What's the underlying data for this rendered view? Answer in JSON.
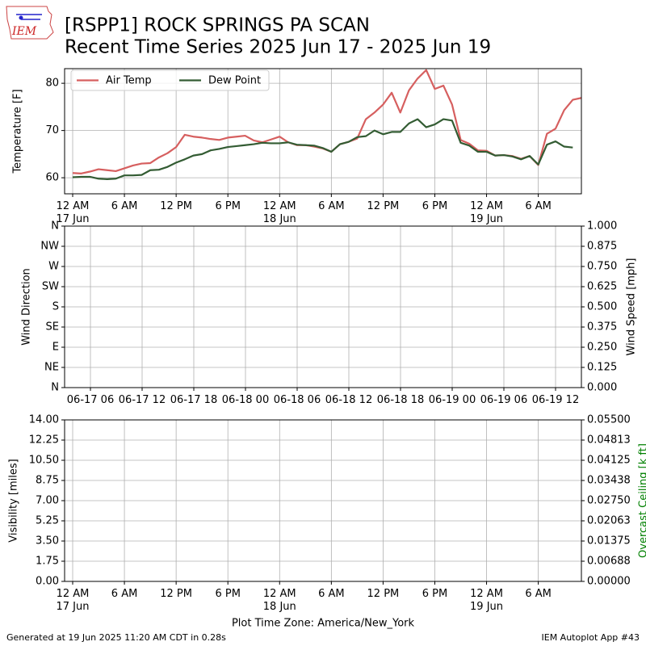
{
  "header": {
    "logo": "IEM",
    "title": [
      "[RSPP1] ROCK SPRINGS PA SCAN",
      "Recent Time Series 2025 Jun 17 - 2025 Jun 19"
    ]
  },
  "footer": {
    "left": "Generated at 19 Jun 2025 11:20 AM CDT in 0.28s",
    "right": "IEM Autoplot App #43"
  },
  "chart_data": [
    {
      "type": "line",
      "ylabel": "Temperature [F]",
      "grid": true,
      "legend": "upper left",
      "xlim": [
        "2025-06-17 00:00",
        "2025-06-19 11:00"
      ],
      "xticks": [
        {
          "value": "2025-06-17 00:00",
          "label": "12 AM\n17 Jun"
        },
        {
          "value": "2025-06-17 06:00",
          "label": "6 AM"
        },
        {
          "value": "2025-06-17 12:00",
          "label": "12 PM"
        },
        {
          "value": "2025-06-17 18:00",
          "label": "6 PM"
        },
        {
          "value": "2025-06-18 00:00",
          "label": "12 AM\n18 Jun"
        },
        {
          "value": "2025-06-18 06:00",
          "label": "6 AM"
        },
        {
          "value": "2025-06-18 12:00",
          "label": "12 PM"
        },
        {
          "value": "2025-06-18 18:00",
          "label": "6 PM"
        },
        {
          "value": "2025-06-19 00:00",
          "label": "12 AM\n19 Jun"
        },
        {
          "value": "2025-06-19 06:00",
          "label": "6 AM"
        }
      ],
      "ylim": [
        56.6,
        83.1
      ],
      "yticks": [
        60,
        70,
        80
      ],
      "x": [
        "2025-06-17 00:00",
        "2025-06-17 01:00",
        "2025-06-17 02:00",
        "2025-06-17 03:00",
        "2025-06-17 04:00",
        "2025-06-17 05:00",
        "2025-06-17 06:00",
        "2025-06-17 07:00",
        "2025-06-17 08:00",
        "2025-06-17 09:00",
        "2025-06-17 10:00",
        "2025-06-17 11:00",
        "2025-06-17 12:00",
        "2025-06-17 13:00",
        "2025-06-17 14:00",
        "2025-06-17 15:00",
        "2025-06-17 16:00",
        "2025-06-17 17:00",
        "2025-06-17 18:00",
        "2025-06-17 19:00",
        "2025-06-17 20:00",
        "2025-06-17 21:00",
        "2025-06-17 22:00",
        "2025-06-17 23:00",
        "2025-06-18 00:00",
        "2025-06-18 01:00",
        "2025-06-18 02:00",
        "2025-06-18 03:00",
        "2025-06-18 04:00",
        "2025-06-18 05:00",
        "2025-06-18 06:00",
        "2025-06-18 07:00",
        "2025-06-18 08:00",
        "2025-06-18 09:00",
        "2025-06-18 10:00",
        "2025-06-18 11:00",
        "2025-06-18 12:00",
        "2025-06-18 13:00",
        "2025-06-18 14:00",
        "2025-06-18 15:00",
        "2025-06-18 16:00",
        "2025-06-18 17:00",
        "2025-06-18 18:00",
        "2025-06-18 19:00",
        "2025-06-18 20:00",
        "2025-06-18 21:00",
        "2025-06-18 22:00",
        "2025-06-18 23:00",
        "2025-06-19 00:00",
        "2025-06-19 01:00",
        "2025-06-19 02:00",
        "2025-06-19 03:00",
        "2025-06-19 04:00",
        "2025-06-19 05:00",
        "2025-06-19 06:00",
        "2025-06-19 07:00",
        "2025-06-19 08:00",
        "2025-06-19 09:00",
        "2025-06-19 10:00",
        "2025-06-19 11:00"
      ],
      "series": [
        {
          "name": "Air Temp",
          "color": "#d65f5f",
          "values": [
            61.0,
            60.9,
            61.3,
            61.8,
            61.6,
            61.4,
            62.0,
            62.6,
            63.0,
            63.1,
            64.3,
            65.2,
            66.5,
            69.1,
            68.7,
            68.5,
            68.2,
            68.0,
            68.5,
            68.7,
            68.9,
            67.9,
            67.5,
            68.1,
            68.7,
            67.5,
            66.9,
            66.9,
            66.6,
            66.2,
            65.5,
            67.1,
            67.6,
            68.3,
            72.4,
            73.8,
            75.5,
            78.0,
            73.8,
            78.5,
            81.0,
            82.8,
            78.8,
            79.5,
            75.5,
            68.0,
            67.2,
            65.8,
            65.7,
            64.7,
            64.8,
            64.6,
            64.0,
            64.6,
            62.7,
            69.3,
            70.4,
            74.3,
            76.5,
            76.9
          ]
        },
        {
          "name": "Dew Point",
          "color": "#335c33",
          "values": [
            60.1,
            60.2,
            60.2,
            59.8,
            59.7,
            59.8,
            60.5,
            60.5,
            60.6,
            61.6,
            61.7,
            62.3,
            63.2,
            63.9,
            64.7,
            65.0,
            65.8,
            66.1,
            66.5,
            66.7,
            66.9,
            67.1,
            67.4,
            67.3,
            67.3,
            67.5,
            67.0,
            66.9,
            66.8,
            66.3,
            65.5,
            67.1,
            67.6,
            68.6,
            68.8,
            70.0,
            69.2,
            69.7,
            69.7,
            71.5,
            72.4,
            70.7,
            71.3,
            72.4,
            72.1,
            67.4,
            66.8,
            65.5,
            65.5,
            64.7,
            64.8,
            64.5,
            63.9,
            64.6,
            62.8,
            67.0,
            67.7,
            66.6,
            66.4,
            null
          ]
        }
      ]
    },
    {
      "type": "line",
      "ylabel": "Wind Direction",
      "y2label": "Wind Speed [mph]",
      "grid": true,
      "xlim": [
        "06-17 03",
        "06-19 15"
      ],
      "xticks": [
        "06-17 06",
        "06-17 12",
        "06-17 18",
        "06-18 00",
        "06-18 06",
        "06-18 12",
        "06-18 18",
        "06-19 00",
        "06-19 06",
        "06-19 12"
      ],
      "ylim": [
        0,
        360
      ],
      "yticks": [
        {
          "value": 0,
          "label": "N"
        },
        {
          "value": 45,
          "label": "NE"
        },
        {
          "value": 90,
          "label": "E"
        },
        {
          "value": 135,
          "label": "SE"
        },
        {
          "value": 180,
          "label": "S"
        },
        {
          "value": 225,
          "label": "SW"
        },
        {
          "value": 270,
          "label": "W"
        },
        {
          "value": 315,
          "label": "NW"
        },
        {
          "value": 360,
          "label": "N"
        }
      ],
      "y2lim": [
        0,
        1
      ],
      "y2ticks": [
        {
          "value": 0,
          "label": "0.000"
        },
        {
          "value": 0.125,
          "label": "0.125"
        },
        {
          "value": 0.25,
          "label": "0.250"
        },
        {
          "value": 0.375,
          "label": "0.375"
        },
        {
          "value": 0.5,
          "label": "0.500"
        },
        {
          "value": 0.625,
          "label": "0.625"
        },
        {
          "value": 0.75,
          "label": "0.750"
        },
        {
          "value": 0.875,
          "label": "0.875"
        },
        {
          "value": 1,
          "label": "1.000"
        }
      ]
    },
    {
      "type": "line",
      "ylabel": "Visibility [miles]",
      "y2label": "Overcast Ceiling [k ft]",
      "y2label_color": "#008000",
      "xlabel": "Plot Time Zone: America/New_York",
      "grid": true,
      "xlim": [
        "2025-06-17 00:00",
        "2025-06-19 11:00"
      ],
      "xticks": [
        {
          "value": "2025-06-17 00:00",
          "label": "12 AM\n17 Jun"
        },
        {
          "value": "2025-06-17 06:00",
          "label": "6 AM"
        },
        {
          "value": "2025-06-17 12:00",
          "label": "12 PM"
        },
        {
          "value": "2025-06-17 18:00",
          "label": "6 PM"
        },
        {
          "value": "2025-06-18 00:00",
          "label": "12 AM\n18 Jun"
        },
        {
          "value": "2025-06-18 06:00",
          "label": "6 AM"
        },
        {
          "value": "2025-06-18 12:00",
          "label": "12 PM"
        },
        {
          "value": "2025-06-18 18:00",
          "label": "6 PM"
        },
        {
          "value": "2025-06-19 00:00",
          "label": "12 AM\n19 Jun"
        },
        {
          "value": "2025-06-19 06:00",
          "label": "6 AM"
        }
      ],
      "ylim": [
        0,
        14
      ],
      "yticks": [
        {
          "value": 0,
          "label": "0.00"
        },
        {
          "value": 1.75,
          "label": "1.75"
        },
        {
          "value": 3.5,
          "label": "3.50"
        },
        {
          "value": 5.25,
          "label": "5.25"
        },
        {
          "value": 7,
          "label": "7.00"
        },
        {
          "value": 8.75,
          "label": "8.75"
        },
        {
          "value": 10.5,
          "label": "10.50"
        },
        {
          "value": 12.25,
          "label": "12.25"
        },
        {
          "value": 14,
          "label": "14.00"
        }
      ],
      "y2lim": [
        0,
        0.055
      ],
      "y2ticks": [
        {
          "value": 0,
          "label": "0.00000"
        },
        {
          "value": 0.006875,
          "label": "0.00688"
        },
        {
          "value": 0.01375,
          "label": "0.01375"
        },
        {
          "value": 0.020625,
          "label": "0.02063"
        },
        {
          "value": 0.0275,
          "label": "0.02750"
        },
        {
          "value": 0.034375,
          "label": "0.03438"
        },
        {
          "value": 0.04125,
          "label": "0.04125"
        },
        {
          "value": 0.048125,
          "label": "0.04813"
        },
        {
          "value": 0.055,
          "label": "0.05500"
        }
      ]
    }
  ]
}
